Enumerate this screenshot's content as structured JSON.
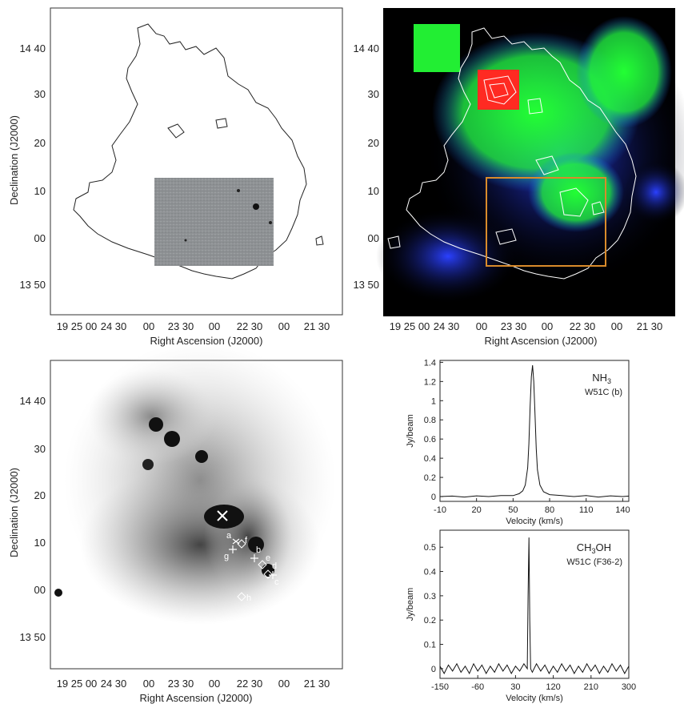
{
  "panels": {
    "top_left": {
      "y_ticks": [
        "14 40",
        "30",
        "20",
        "10",
        "00",
        "13 50"
      ],
      "x_ticks": [
        "19 25 00",
        "24 30",
        "00",
        "23 30",
        "00",
        "22 30",
        "00",
        "21 30"
      ],
      "ylabel": "Declination (J2000)",
      "xlabel": "Right Ascension (J2000)"
    },
    "top_right": {
      "y_ticks": [
        "14 40",
        "30",
        "20",
        "10",
        "00",
        "13 50"
      ],
      "x_ticks": [
        "19 25 00",
        "24 30",
        "00",
        "23 30",
        "00",
        "22 30",
        "00",
        "21 30"
      ],
      "xlabel": "Right Ascension (J2000)",
      "colors": {
        "bg": "#000000",
        "blue": "#2233ff",
        "green": "#22ff22",
        "red": "#ff2222",
        "box": "#d98b2b"
      }
    },
    "bottom_left": {
      "y_ticks": [
        "14 40",
        "30",
        "20",
        "10",
        "00",
        "13 50"
      ],
      "x_ticks": [
        "19 25 00",
        "24 30",
        "00",
        "23 30",
        "00",
        "22 30",
        "00",
        "21 30"
      ],
      "ylabel": "Declination (J2000)",
      "xlabel": "Right Ascension (J2000)",
      "markers": [
        "a",
        "b",
        "c",
        "d",
        "e",
        "f",
        "g",
        "h"
      ]
    }
  },
  "chart_data": [
    {
      "type": "line",
      "title": "",
      "annotations": [
        "NH3",
        "W51C (b)"
      ],
      "xlabel": "Velocity (km/s)",
      "ylabel": "Jy/beam",
      "xlim": [
        -10,
        145
      ],
      "ylim": [
        -0.05,
        1.42
      ],
      "x_ticks": [
        -10,
        20,
        50,
        80,
        110,
        140
      ],
      "y_ticks": [
        0,
        0.2,
        0.4,
        0.6,
        0.8,
        1,
        1.2,
        1.4
      ],
      "series": [
        {
          "x": [
            -10,
            0,
            10,
            20,
            30,
            40,
            50,
            55,
            58,
            60,
            62,
            63,
            64,
            65,
            66,
            67,
            68,
            69,
            70,
            72,
            75,
            80,
            90,
            100,
            110,
            120,
            130,
            140,
            145
          ],
          "y": [
            0,
            0.005,
            -0.005,
            0.008,
            0,
            0.01,
            0.01,
            0.03,
            0.06,
            0.12,
            0.3,
            0.55,
            0.95,
            1.25,
            1.37,
            1.2,
            0.85,
            0.5,
            0.28,
            0.12,
            0.05,
            0.02,
            0.01,
            0,
            0.01,
            -0.005,
            0.008,
            0,
            0.005
          ]
        }
      ]
    },
    {
      "type": "line",
      "title": "",
      "annotations": [
        "CH3OH",
        "W51C (F36-2)"
      ],
      "xlabel": "Velocity (km/s)",
      "ylabel": "Jy/beam",
      "xlim": [
        -150,
        300
      ],
      "ylim": [
        -0.04,
        0.57
      ],
      "x_ticks": [
        -150,
        -60,
        30,
        120,
        210,
        300
      ],
      "y_ticks": [
        0,
        0.1,
        0.2,
        0.3,
        0.4,
        0.5
      ],
      "series": [
        {
          "x": [
            -150,
            -140,
            -130,
            -120,
            -110,
            -100,
            -90,
            -80,
            -70,
            -60,
            -50,
            -40,
            -30,
            -20,
            -10,
            0,
            10,
            20,
            30,
            40,
            50,
            58,
            60,
            62,
            64,
            66,
            70,
            80,
            90,
            100,
            110,
            120,
            130,
            140,
            150,
            160,
            170,
            180,
            190,
            200,
            210,
            220,
            230,
            240,
            250,
            260,
            270,
            280,
            290,
            300
          ],
          "y": [
            0.01,
            -0.02,
            0.015,
            -0.01,
            0.02,
            -0.015,
            0.01,
            -0.02,
            0.02,
            -0.01,
            0.015,
            -0.02,
            0.01,
            -0.015,
            0.02,
            -0.01,
            0.015,
            -0.02,
            0.01,
            -0.01,
            0.02,
            0.0,
            0.3,
            0.54,
            0.2,
            0.0,
            -0.015,
            0.02,
            -0.01,
            0.015,
            -0.02,
            0.01,
            -0.015,
            0.02,
            -0.01,
            0.015,
            -0.02,
            0.01,
            -0.015,
            0.02,
            -0.01,
            0.015,
            -0.02,
            0.01,
            -0.015,
            0.02,
            -0.01,
            0.015,
            -0.02,
            0.01
          ]
        }
      ]
    }
  ]
}
